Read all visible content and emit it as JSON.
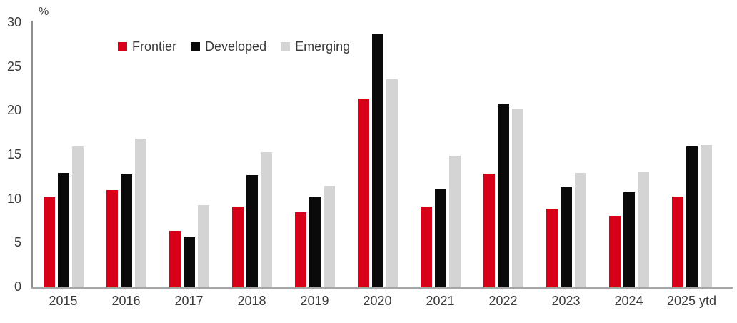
{
  "chart_data": {
    "type": "bar",
    "title": "",
    "xlabel": "",
    "ylabel": "%",
    "ylim": [
      0,
      30
    ],
    "y_ticks": [
      0,
      5,
      10,
      15,
      20,
      25,
      30
    ],
    "grid": false,
    "legend_position": "top-left-inside",
    "categories": [
      "2015",
      "2016",
      "2017",
      "2018",
      "2019",
      "2020",
      "2021",
      "2022",
      "2023",
      "2024",
      "2025 ytd"
    ],
    "series": [
      {
        "name": "Frontier",
        "color": "#d80018",
        "values": [
          10.2,
          11.0,
          6.4,
          9.2,
          8.5,
          21.4,
          9.2,
          12.9,
          8.9,
          8.1,
          10.3
        ]
      },
      {
        "name": "Developed",
        "color": "#0a0a0a",
        "values": [
          13.0,
          12.8,
          5.7,
          12.7,
          10.2,
          28.7,
          11.2,
          20.8,
          11.4,
          10.8,
          16.0
        ]
      },
      {
        "name": "Emerging",
        "color": "#d4d4d4",
        "values": [
          16.0,
          16.9,
          9.3,
          15.3,
          11.5,
          23.6,
          14.9,
          20.3,
          13.0,
          13.1,
          16.1
        ]
      }
    ],
    "axis_color": "#9e9e9e",
    "text_color": "#3a3a3a"
  }
}
